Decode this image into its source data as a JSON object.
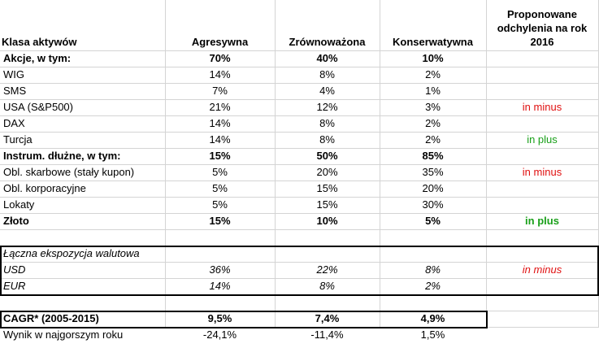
{
  "table": {
    "header": [
      "Klasa aktywów",
      "Agresywna",
      "Zrównoważona",
      "Konserwatywna",
      "Proponowane odchylenia na rok 2016"
    ],
    "sections": [
      {
        "rows": [
          [
            "Akcje, w tym:",
            "70%",
            "40%",
            "10%",
            null
          ],
          [
            "WIG",
            "14%",
            "8%",
            "2%",
            null
          ],
          [
            "SMS",
            "7%",
            "4%",
            "1%",
            null
          ],
          [
            "USA (S&P500)",
            "21%",
            "12%",
            "3%",
            "in minus"
          ],
          [
            "DAX",
            "14%",
            "8%",
            "2%",
            null
          ],
          [
            "Turcja",
            "14%",
            "8%",
            "2%",
            "in plus"
          ],
          [
            "Instrum. dłużne, w tym:",
            "15%",
            "50%",
            "85%",
            null
          ],
          [
            "Obl. skarbowe (stały kupon)",
            "5%",
            "20%",
            "35%",
            "in minus"
          ],
          [
            "Obl. korporacyjne",
            "5%",
            "15%",
            "20%",
            null
          ],
          [
            "Lokaty",
            "5%",
            "15%",
            "30%",
            null
          ],
          [
            "Złoto",
            "15%",
            "10%",
            "5%",
            "in plus"
          ]
        ]
      },
      {
        "rows": [
          [
            "Łączna ekspozycja walutowa",
            null,
            null,
            null,
            null
          ],
          [
            "USD",
            "36%",
            "22%",
            "8%",
            "in minus"
          ],
          [
            "EUR",
            "14%",
            "8%",
            "2%",
            null
          ]
        ]
      },
      {
        "rows": [
          [
            "CAGR* (2005-2015)",
            "9,5%",
            "7,4%",
            "4,9%",
            null
          ],
          [
            "Wynik w najgorszym roku",
            "-24,1%",
            "-11,4%",
            "1,5%",
            null
          ]
        ]
      }
    ]
  }
}
